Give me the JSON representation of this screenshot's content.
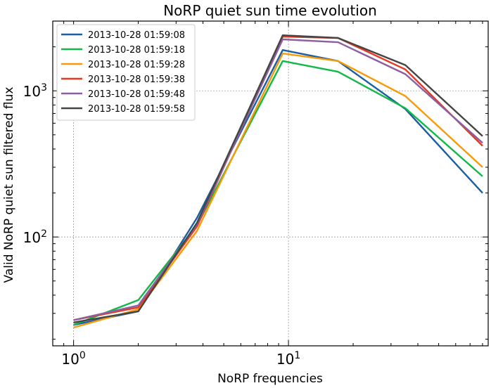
{
  "chart_data": {
    "type": "line",
    "title": "NoRP quiet sun time evolution",
    "xlabel": "NoRP frequencies",
    "ylabel": "Valid NoRP quiet sun filtered flux",
    "xscale": "log",
    "yscale": "log",
    "xlim": [
      0.8,
      85
    ],
    "ylim": [
      18,
      3000
    ],
    "xticks": [
      {
        "value": 1,
        "base": "10",
        "exp": "0"
      },
      {
        "value": 10,
        "base": "10",
        "exp": "1"
      }
    ],
    "yticks": [
      {
        "value": 100,
        "base": "10",
        "exp": "2"
      },
      {
        "value": 1000,
        "base": "10",
        "exp": "3"
      }
    ],
    "grid": true,
    "legend_position": "top-left",
    "x": [
      1.0,
      2.0,
      3.75,
      9.4,
      17.0,
      35.0,
      80.0
    ],
    "series": [
      {
        "name": "2013-10-28 01:59:08",
        "color": "#1a5fa0",
        "values": [
          25,
          31,
          135,
          1900,
          1600,
          750,
          200
        ]
      },
      {
        "name": "2013-10-28 01:59:18",
        "color": "#12b84a",
        "values": [
          25,
          37,
          120,
          1600,
          1350,
          760,
          260
        ]
      },
      {
        "name": "2013-10-28 01:59:28",
        "color": "#f79a0a",
        "values": [
          24,
          32,
          110,
          1800,
          1600,
          920,
          300
        ]
      },
      {
        "name": "2013-10-28 01:59:38",
        "color": "#e8381e",
        "values": [
          27,
          33,
          118,
          2350,
          2300,
          1400,
          420
        ]
      },
      {
        "name": "2013-10-28 01:59:48",
        "color": "#8e5fa0",
        "values": [
          27,
          34,
          122,
          2250,
          2150,
          1300,
          440
        ]
      },
      {
        "name": "2013-10-28 01:59:58",
        "color": "#454545",
        "values": [
          26,
          31,
          125,
          2400,
          2300,
          1500,
          490
        ]
      }
    ]
  }
}
